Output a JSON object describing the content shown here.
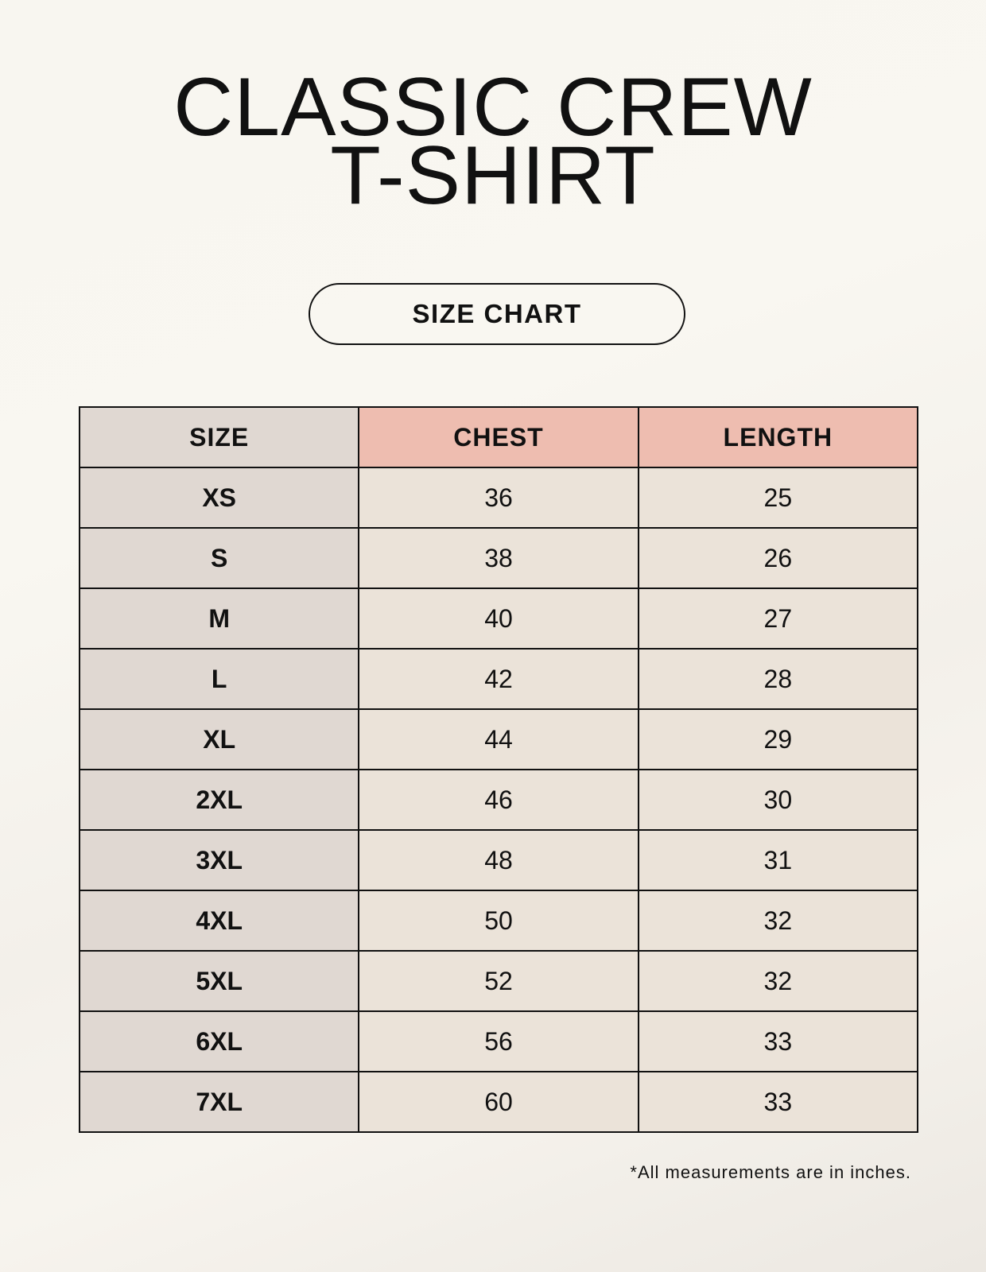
{
  "title": {
    "line1": "CLASSIC CREW",
    "line2": "T-SHIRT"
  },
  "badge": "SIZE CHART",
  "table": {
    "headers": [
      "SIZE",
      "CHEST",
      "LENGTH"
    ],
    "rows": [
      [
        "XS",
        "36",
        "25"
      ],
      [
        "S",
        "38",
        "26"
      ],
      [
        "M",
        "40",
        "27"
      ],
      [
        "L",
        "42",
        "28"
      ],
      [
        "XL",
        "44",
        "29"
      ],
      [
        "2XL",
        "46",
        "30"
      ],
      [
        "3XL",
        "48",
        "31"
      ],
      [
        "4XL",
        "50",
        "32"
      ],
      [
        "5XL",
        "52",
        "32"
      ],
      [
        "6XL",
        "56",
        "33"
      ],
      [
        "7XL",
        "60",
        "33"
      ]
    ]
  },
  "footnote": "*All measurements are in inches.",
  "colors": {
    "header_accent": "#eebdb0",
    "size_column": "#e0d8d2",
    "value_cells": "#ebe3d9"
  }
}
